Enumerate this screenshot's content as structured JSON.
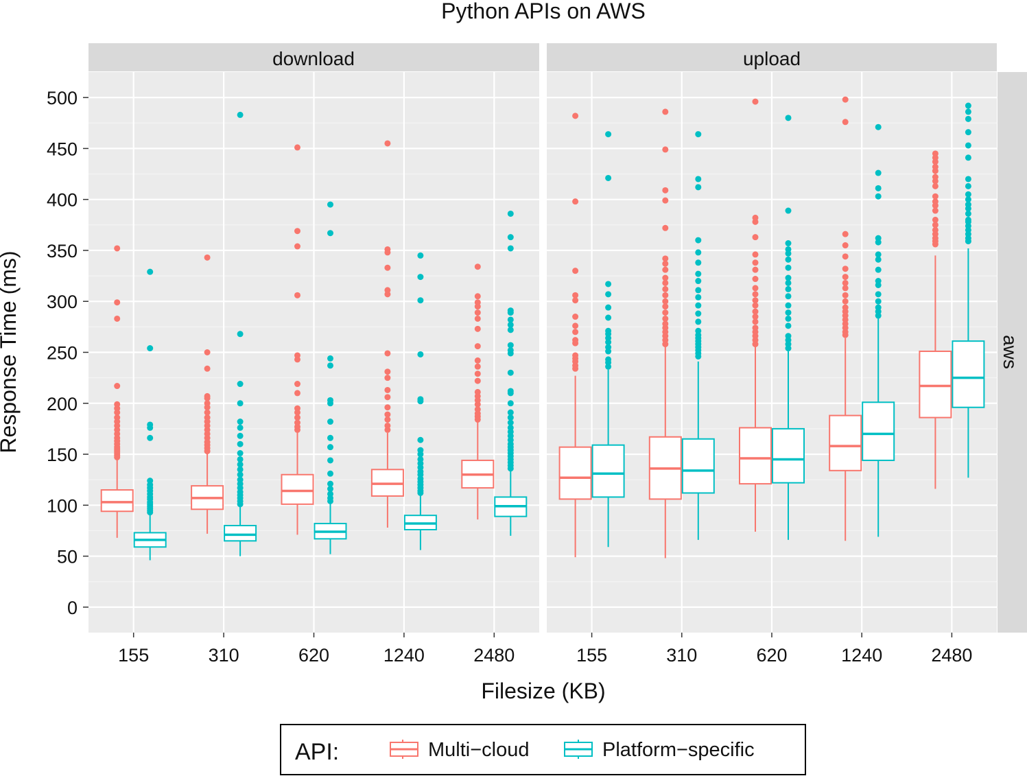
{
  "chart_data": {
    "type": "box",
    "title": "Python APIs on AWS",
    "xlabel": "Filesize (KB)",
    "ylabel": "Response Time (ms)",
    "ylim": [
      -25,
      525
    ],
    "yticks": [
      0,
      50,
      100,
      150,
      200,
      250,
      300,
      350,
      400,
      450,
      500
    ],
    "categories": [
      "155",
      "310",
      "620",
      "1240",
      "2480"
    ],
    "row_label": "aws",
    "legend": {
      "title": "API:",
      "position": "bottom",
      "entries": [
        {
          "name": "Multi−cloud",
          "color": "#F8766D"
        },
        {
          "name": "Platform−specific",
          "color": "#00BFC4"
        }
      ]
    },
    "panels": [
      {
        "name": "download",
        "series": [
          {
            "name": "Multi−cloud",
            "boxes": [
              {
                "lower": 68,
                "q1": 94,
                "median": 103,
                "q3": 115,
                "upper": 145,
                "outliers": [
                  147,
                  149,
                  151,
                  153,
                  155,
                  157,
                  160,
                  163,
                  166,
                  170,
                  174,
                  178,
                  182,
                  186,
                  191,
                  195,
                  199,
                  217,
                  283,
                  299,
                  352
                ]
              },
              {
                "lower": 72,
                "q1": 96,
                "median": 107,
                "q3": 119,
                "upper": 151,
                "outliers": [
                  153,
                  156,
                  159,
                  162,
                  166,
                  170,
                  174,
                  178,
                  182,
                  186,
                  191,
                  196,
                  200,
                  205,
                  207,
                  234,
                  250,
                  343
                ]
              },
              {
                "lower": 71,
                "q1": 101,
                "median": 114,
                "q3": 130,
                "upper": 172,
                "outliers": [
                  174,
                  177,
                  181,
                  186,
                  191,
                  195,
                  210,
                  219,
                  243,
                  247,
                  306,
                  354,
                  369,
                  451
                ]
              },
              {
                "lower": 78,
                "q1": 109,
                "median": 121,
                "q3": 135,
                "upper": 171,
                "outliers": [
                  174,
                  178,
                  184,
                  189,
                  196,
                  206,
                  213,
                  225,
                  231,
                  249,
                  307,
                  311,
                  333,
                  348,
                  351,
                  455
                ]
              },
              {
                "lower": 86,
                "q1": 117,
                "median": 130,
                "q3": 144,
                "upper": 182,
                "outliers": [
                  184,
                  187,
                  190,
                  194,
                  199,
                  203,
                  207,
                  211,
                  222,
                  229,
                  236,
                  242,
                  256,
                  273,
                  283,
                  289,
                  295,
                  299,
                  305,
                  334
                ]
              }
            ]
          },
          {
            "name": "Platform−specific",
            "boxes": [
              {
                "lower": 46,
                "q1": 59,
                "median": 66,
                "q3": 73,
                "upper": 91,
                "outliers": [
                  93,
                  95,
                  97,
                  99,
                  101,
                  103,
                  106,
                  108,
                  111,
                  114,
                  117,
                  120,
                  124,
                  166,
                  176,
                  179,
                  254,
                  329
                ]
              },
              {
                "lower": 50,
                "q1": 65,
                "median": 71,
                "q3": 80,
                "upper": 99,
                "outliers": [
                  101,
                  104,
                  107,
                  110,
                  113,
                  117,
                  121,
                  125,
                  130,
                  135,
                  140,
                  145,
                  151,
                  160,
                  168,
                  176,
                  182,
                  200,
                  219,
                  268,
                  483
                ]
              },
              {
                "lower": 52,
                "q1": 67,
                "median": 74,
                "q3": 82,
                "upper": 102,
                "outliers": [
                  104,
                  107,
                  111,
                  116,
                  121,
                  131,
                  144,
                  157,
                  166,
                  182,
                  200,
                  203,
                  237,
                  244,
                  367,
                  395
                ]
              },
              {
                "lower": 56,
                "q1": 76,
                "median": 82,
                "q3": 90,
                "upper": 110,
                "outliers": [
                  112,
                  114,
                  117,
                  120,
                  123,
                  126,
                  130,
                  133,
                  137,
                  141,
                  145,
                  150,
                  154,
                  164,
                  202,
                  204,
                  248,
                  301,
                  324,
                  345
                ]
              },
              {
                "lower": 70,
                "q1": 89,
                "median": 99,
                "q3": 108,
                "upper": 134,
                "outliers": [
                  136,
                  139,
                  142,
                  145,
                  148,
                  151,
                  154,
                  157,
                  160,
                  164,
                  168,
                  172,
                  176,
                  181,
                  186,
                  191,
                  200,
                  210,
                  212,
                  230,
                  249,
                  252,
                  257,
                  272,
                  277,
                  282,
                  289,
                  291,
                  352,
                  363,
                  386
                ]
              }
            ]
          }
        ]
      },
      {
        "name": "upload",
        "series": [
          {
            "name": "Multi−cloud",
            "boxes": [
              {
                "lower": 49,
                "q1": 106,
                "median": 127,
                "q3": 157,
                "upper": 227,
                "outliers": [
                  234,
                  237,
                  241,
                  244,
                  247,
                  259,
                  262,
                  270,
                  276,
                  285,
                  301,
                  306,
                  330,
                  398,
                  482
                ]
              },
              {
                "lower": 48,
                "q1": 106,
                "median": 136,
                "q3": 167,
                "upper": 256,
                "outliers": [
                  258,
                  262,
                  266,
                  270,
                  274,
                  278,
                  283,
                  289,
                  295,
                  300,
                  306,
                  312,
                  318,
                  323,
                  331,
                  337,
                  342,
                  372,
                  399,
                  409,
                  449,
                  486
                ]
              },
              {
                "lower": 74,
                "q1": 121,
                "median": 146,
                "q3": 176,
                "upper": 256,
                "outliers": [
                  258,
                  262,
                  266,
                  270,
                  274,
                  280,
                  285,
                  290,
                  296,
                  301,
                  307,
                  313,
                  322,
                  331,
                  338,
                  346,
                  363,
                  378,
                  382,
                  496
                ]
              },
              {
                "lower": 65,
                "q1": 134,
                "median": 158,
                "q3": 188,
                "upper": 264,
                "outliers": [
                  267,
                  270,
                  274,
                  278,
                  282,
                  286,
                  290,
                  294,
                  300,
                  306,
                  313,
                  318,
                  324,
                  332,
                  344,
                  355,
                  366,
                  476,
                  498
                ]
              },
              {
                "lower": 116,
                "q1": 186,
                "median": 217,
                "q3": 251,
                "upper": 345,
                "outliers": [
                  356,
                  359,
                  362,
                  366,
                  370,
                  375,
                  380,
                  389,
                  394,
                  398,
                  403,
                  413,
                  418,
                  422,
                  428,
                  432,
                  437,
                  441,
                  445
                ]
              }
            ]
          },
          {
            "name": "Platform−specific",
            "boxes": [
              {
                "lower": 59,
                "q1": 108,
                "median": 131,
                "q3": 159,
                "upper": 233,
                "outliers": [
                  236,
                  240,
                  243,
                  251,
                  255,
                  260,
                  264,
                  268,
                  271,
                  284,
                  294,
                  307,
                  317,
                  421,
                  464
                ]
              },
              {
                "lower": 66,
                "q1": 112,
                "median": 134,
                "q3": 165,
                "upper": 241,
                "outliers": [
                  246,
                  249,
                  252,
                  255,
                  258,
                  261,
                  264,
                  267,
                  271,
                  280,
                  288,
                  296,
                  304,
                  311,
                  320,
                  327,
                  338,
                  348,
                  360,
                  412,
                  420,
                  464
                ]
              },
              {
                "lower": 66,
                "q1": 122,
                "median": 145,
                "q3": 175,
                "upper": 251,
                "outliers": [
                  254,
                  258,
                  262,
                  266,
                  276,
                  283,
                  289,
                  296,
                  305,
                  312,
                  318,
                  323,
                  333,
                  341,
                  347,
                  351,
                  357,
                  389,
                  480
                ]
              },
              {
                "lower": 69,
                "q1": 144,
                "median": 170,
                "q3": 201,
                "upper": 283,
                "outliers": [
                  286,
                  290,
                  294,
                  300,
                  307,
                  316,
                  320,
                  331,
                  341,
                  346,
                  358,
                  362,
                  403,
                  411,
                  426,
                  471
                ]
              },
              {
                "lower": 127,
                "q1": 196,
                "median": 225,
                "q3": 261,
                "upper": 352,
                "outliers": [
                  359,
                  362,
                  366,
                  370,
                  374,
                  378,
                  380,
                  386,
                  391,
                  395,
                  400,
                  405,
                  413,
                  420,
                  441,
                  453,
                  466,
                  479,
                  486,
                  492
                ]
              }
            ]
          }
        ]
      }
    ]
  }
}
